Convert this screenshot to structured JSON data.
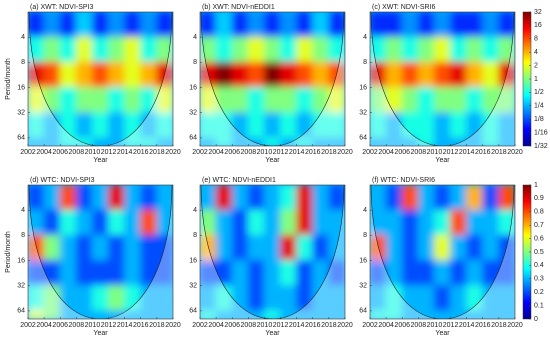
{
  "chart_data": [
    {
      "type": "heatmap",
      "title": "(a) XWT: NDVI-SPI3",
      "xlabel": "Year",
      "ylabel": "Period/month",
      "xlim": [
        2002,
        2020
      ],
      "xticks": [
        2002,
        2004,
        2006,
        2008,
        2010,
        2012,
        2014,
        2016,
        2018,
        2020
      ],
      "ylim": [
        2,
        80
      ],
      "yticks": [
        4,
        8,
        16,
        32,
        64
      ],
      "log_y": true,
      "clim": [
        0.03125,
        32
      ],
      "log_c": true,
      "z": [
        [
          0.1,
          0.2,
          0.1,
          0.3,
          0.1,
          0.2,
          0.1,
          0.2,
          0.1
        ],
        [
          0.5,
          1,
          0.5,
          2,
          0.5,
          1,
          2,
          0.5,
          1
        ],
        [
          16,
          8,
          2,
          4,
          8,
          4,
          2,
          4,
          16
        ],
        [
          2,
          1,
          0.5,
          1,
          1,
          0.5,
          1,
          0.5,
          2
        ],
        [
          0.5,
          0.25,
          0.5,
          0.25,
          0.5,
          0.25,
          0.5,
          0.25,
          0.5
        ],
        [
          0.25,
          0.25,
          0.5,
          0.5,
          0.25,
          0.25,
          0.5,
          0.5,
          0.25
        ]
      ]
    },
    {
      "type": "heatmap",
      "title": "(b) XWT: NDVI-nEDDI1",
      "xlabel": "Year",
      "xlim": [
        2002,
        2020
      ],
      "xticks": [
        2002,
        2004,
        2006,
        2008,
        2010,
        2012,
        2014,
        2016,
        2018,
        2020
      ],
      "ylim": [
        2,
        80
      ],
      "yticks": [
        4,
        8,
        16,
        32,
        64
      ],
      "log_y": true,
      "clim": [
        0.03125,
        32
      ],
      "log_c": true,
      "z": [
        [
          0.1,
          0.3,
          0.1,
          0.2,
          0.1,
          0.2,
          0.1,
          0.3,
          0.1
        ],
        [
          1,
          0.5,
          1,
          2,
          1,
          0.5,
          2,
          1,
          0.5
        ],
        [
          16,
          32,
          16,
          8,
          32,
          16,
          8,
          4,
          8
        ],
        [
          2,
          1,
          1,
          0.5,
          1,
          1,
          0.5,
          1,
          2
        ],
        [
          0.5,
          0.5,
          0.25,
          0.5,
          0.25,
          0.5,
          0.25,
          0.5,
          0.5
        ],
        [
          0.25,
          0.5,
          0.25,
          0.25,
          0.5,
          0.25,
          0.5,
          0.25,
          0.25
        ]
      ]
    },
    {
      "type": "heatmap",
      "title": "(c) XWT: NDVI-SRI6",
      "xlabel": "Year",
      "xlim": [
        2002,
        2020
      ],
      "xticks": [
        2002,
        2004,
        2006,
        2008,
        2010,
        2012,
        2014,
        2016,
        2018,
        2020
      ],
      "ylim": [
        2,
        80
      ],
      "yticks": [
        4,
        8,
        16,
        32,
        64
      ],
      "log_y": true,
      "clim": [
        0.03125,
        32
      ],
      "log_c": true,
      "colorbar": true,
      "cticks": [
        32,
        16,
        8,
        4,
        2,
        1,
        {
          "value": 0.5,
          "label": "1/2"
        },
        {
          "value": 0.25,
          "label": "1/4"
        },
        {
          "value": 0.125,
          "label": "1/8"
        },
        {
          "value": 0.0625,
          "label": "1/16"
        },
        {
          "value": 0.03125,
          "label": "1/32"
        }
      ],
      "z": [
        [
          0.1,
          0.1,
          0.2,
          0.1,
          0.2,
          0.1,
          0.1,
          0.2,
          0.1
        ],
        [
          0.5,
          1,
          0.5,
          1,
          2,
          0.5,
          1,
          0.5,
          1
        ],
        [
          16,
          4,
          8,
          4,
          8,
          16,
          4,
          2,
          16
        ],
        [
          1,
          2,
          1,
          0.5,
          1,
          1,
          0.5,
          1,
          1
        ],
        [
          0.5,
          0.25,
          0.5,
          0.5,
          0.25,
          0.5,
          0.25,
          0.5,
          0.25
        ],
        [
          0.25,
          0.25,
          0.25,
          0.5,
          0.25,
          0.25,
          0.25,
          0.5,
          0.25
        ]
      ]
    },
    {
      "type": "heatmap",
      "title": "(d) WTC: NDVI-SPI3",
      "xlabel": "Year",
      "ylabel": "Period/month",
      "xlim": [
        2002,
        2020
      ],
      "xticks": [
        2002,
        2004,
        2006,
        2008,
        2010,
        2012,
        2014,
        2016,
        2018,
        2020
      ],
      "ylim": [
        2,
        80
      ],
      "yticks": [
        4,
        8,
        16,
        32,
        64
      ],
      "log_y": true,
      "clim": [
        0,
        1
      ],
      "z": [
        [
          0.2,
          0.3,
          0.8,
          0.2,
          0.3,
          0.9,
          0.3,
          0.2,
          0.3
        ],
        [
          0.3,
          0.2,
          0.4,
          0.3,
          0.2,
          0.4,
          0.3,
          0.8,
          0.3
        ],
        [
          0.8,
          0.5,
          0.3,
          0.2,
          0.3,
          0.2,
          0.3,
          0.2,
          0.2
        ],
        [
          0.2,
          0.2,
          0.3,
          0.2,
          0.2,
          0.2,
          0.3,
          0.2,
          0.2
        ],
        [
          0.4,
          0.5,
          0.3,
          0.3,
          0.4,
          0.5,
          0.4,
          0.3,
          0.3
        ],
        [
          0.6,
          0.5,
          0.3,
          0.3,
          0.3,
          0.3,
          0.3,
          0.3,
          0.3
        ]
      ]
    },
    {
      "type": "heatmap",
      "title": "(e) WTC: NDVI-nEDDI1",
      "xlabel": "Year",
      "xlim": [
        2002,
        2020
      ],
      "xticks": [
        2002,
        2004,
        2006,
        2008,
        2010,
        2012,
        2014,
        2016,
        2018,
        2020
      ],
      "ylim": [
        2,
        80
      ],
      "yticks": [
        4,
        8,
        16,
        32,
        64
      ],
      "log_y": true,
      "clim": [
        0,
        1
      ],
      "z": [
        [
          0.3,
          0.9,
          0.3,
          0.2,
          0.3,
          0.4,
          0.9,
          0.3,
          0.2
        ],
        [
          0.5,
          0.3,
          0.2,
          0.4,
          0.3,
          0.5,
          0.9,
          0.3,
          0.3
        ],
        [
          0.7,
          0.3,
          0.2,
          0.3,
          0.3,
          0.9,
          0.4,
          0.2,
          0.3
        ],
        [
          0.2,
          0.2,
          0.3,
          0.2,
          0.3,
          0.4,
          0.2,
          0.3,
          0.2
        ],
        [
          0.3,
          0.4,
          0.3,
          0.2,
          0.3,
          0.3,
          0.2,
          0.3,
          0.3
        ],
        [
          0.4,
          0.3,
          0.3,
          0.3,
          0.4,
          0.3,
          0.3,
          0.3,
          0.3
        ]
      ]
    },
    {
      "type": "heatmap",
      "title": "(f) WTC: NDVI-SRI6",
      "xlabel": "Year",
      "xlim": [
        2002,
        2020
      ],
      "xticks": [
        2002,
        2004,
        2006,
        2008,
        2010,
        2012,
        2014,
        2016,
        2018,
        2020
      ],
      "ylim": [
        2,
        80
      ],
      "yticks": [
        4,
        8,
        16,
        32,
        64
      ],
      "log_y": true,
      "clim": [
        0,
        1
      ],
      "colorbar": true,
      "cticks": [
        0,
        0.1,
        0.2,
        0.3,
        0.4,
        0.5,
        0.6,
        0.7,
        0.8,
        0.9,
        1
      ],
      "z": [
        [
          0.3,
          0.2,
          0.8,
          0.3,
          0.2,
          0.3,
          0.7,
          0.2,
          0.8
        ],
        [
          0.3,
          0.3,
          0.2,
          0.3,
          0.4,
          0.8,
          0.3,
          0.3,
          0.4
        ],
        [
          0.8,
          0.3,
          0.2,
          0.3,
          0.6,
          0.3,
          0.2,
          0.3,
          0.2
        ],
        [
          0.2,
          0.3,
          0.2,
          0.2,
          0.3,
          0.2,
          0.3,
          0.2,
          0.2
        ],
        [
          0.3,
          0.4,
          0.3,
          0.3,
          0.2,
          0.3,
          0.4,
          0.3,
          0.3
        ],
        [
          0.4,
          0.4,
          0.3,
          0.3,
          0.3,
          0.3,
          0.3,
          0.3,
          0.3
        ]
      ]
    }
  ]
}
